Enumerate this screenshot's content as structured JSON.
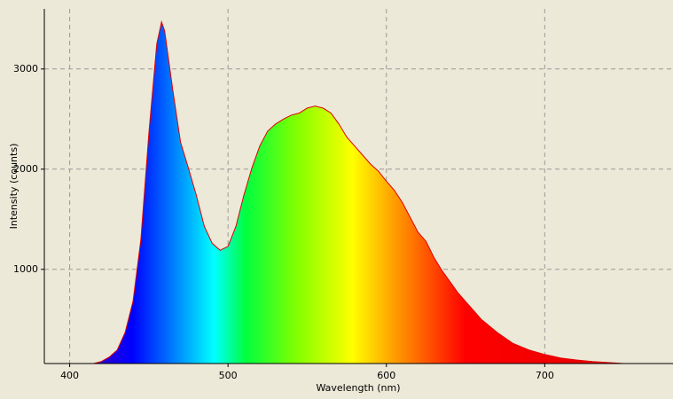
{
  "chart_data": {
    "type": "area",
    "x_label": "Wavelength (nm)",
    "y_label": "Intensity (counts)",
    "x": [
      415,
      420,
      425,
      430,
      435,
      440,
      445,
      450,
      455,
      458,
      460,
      465,
      470,
      475,
      480,
      485,
      490,
      495,
      500,
      505,
      510,
      515,
      520,
      525,
      530,
      535,
      540,
      545,
      550,
      555,
      560,
      565,
      570,
      575,
      580,
      585,
      590,
      595,
      600,
      605,
      610,
      615,
      620,
      625,
      630,
      635,
      640,
      645,
      650,
      655,
      660,
      670,
      680,
      690,
      700,
      710,
      720,
      730,
      740,
      750
    ],
    "values": [
      60,
      80,
      125,
      195,
      370,
      680,
      1300,
      2360,
      3250,
      3470,
      3380,
      2800,
      2270,
      2010,
      1740,
      1430,
      1260,
      1190,
      1230,
      1430,
      1740,
      2010,
      2230,
      2380,
      2450,
      2500,
      2540,
      2560,
      2610,
      2630,
      2610,
      2560,
      2450,
      2320,
      2230,
      2140,
      2050,
      1980,
      1880,
      1790,
      1670,
      1520,
      1370,
      1280,
      1120,
      990,
      880,
      770,
      680,
      590,
      500,
      370,
      260,
      195,
      150,
      115,
      95,
      80,
      70,
      60
    ],
    "line_color": "#e00000",
    "xlim": [
      384,
      781
    ],
    "ylim": [
      60,
      3600
    ],
    "xticks": [
      400,
      500,
      600,
      700
    ],
    "yticks": [
      1000,
      2000,
      3000
    ],
    "grid": true
  }
}
